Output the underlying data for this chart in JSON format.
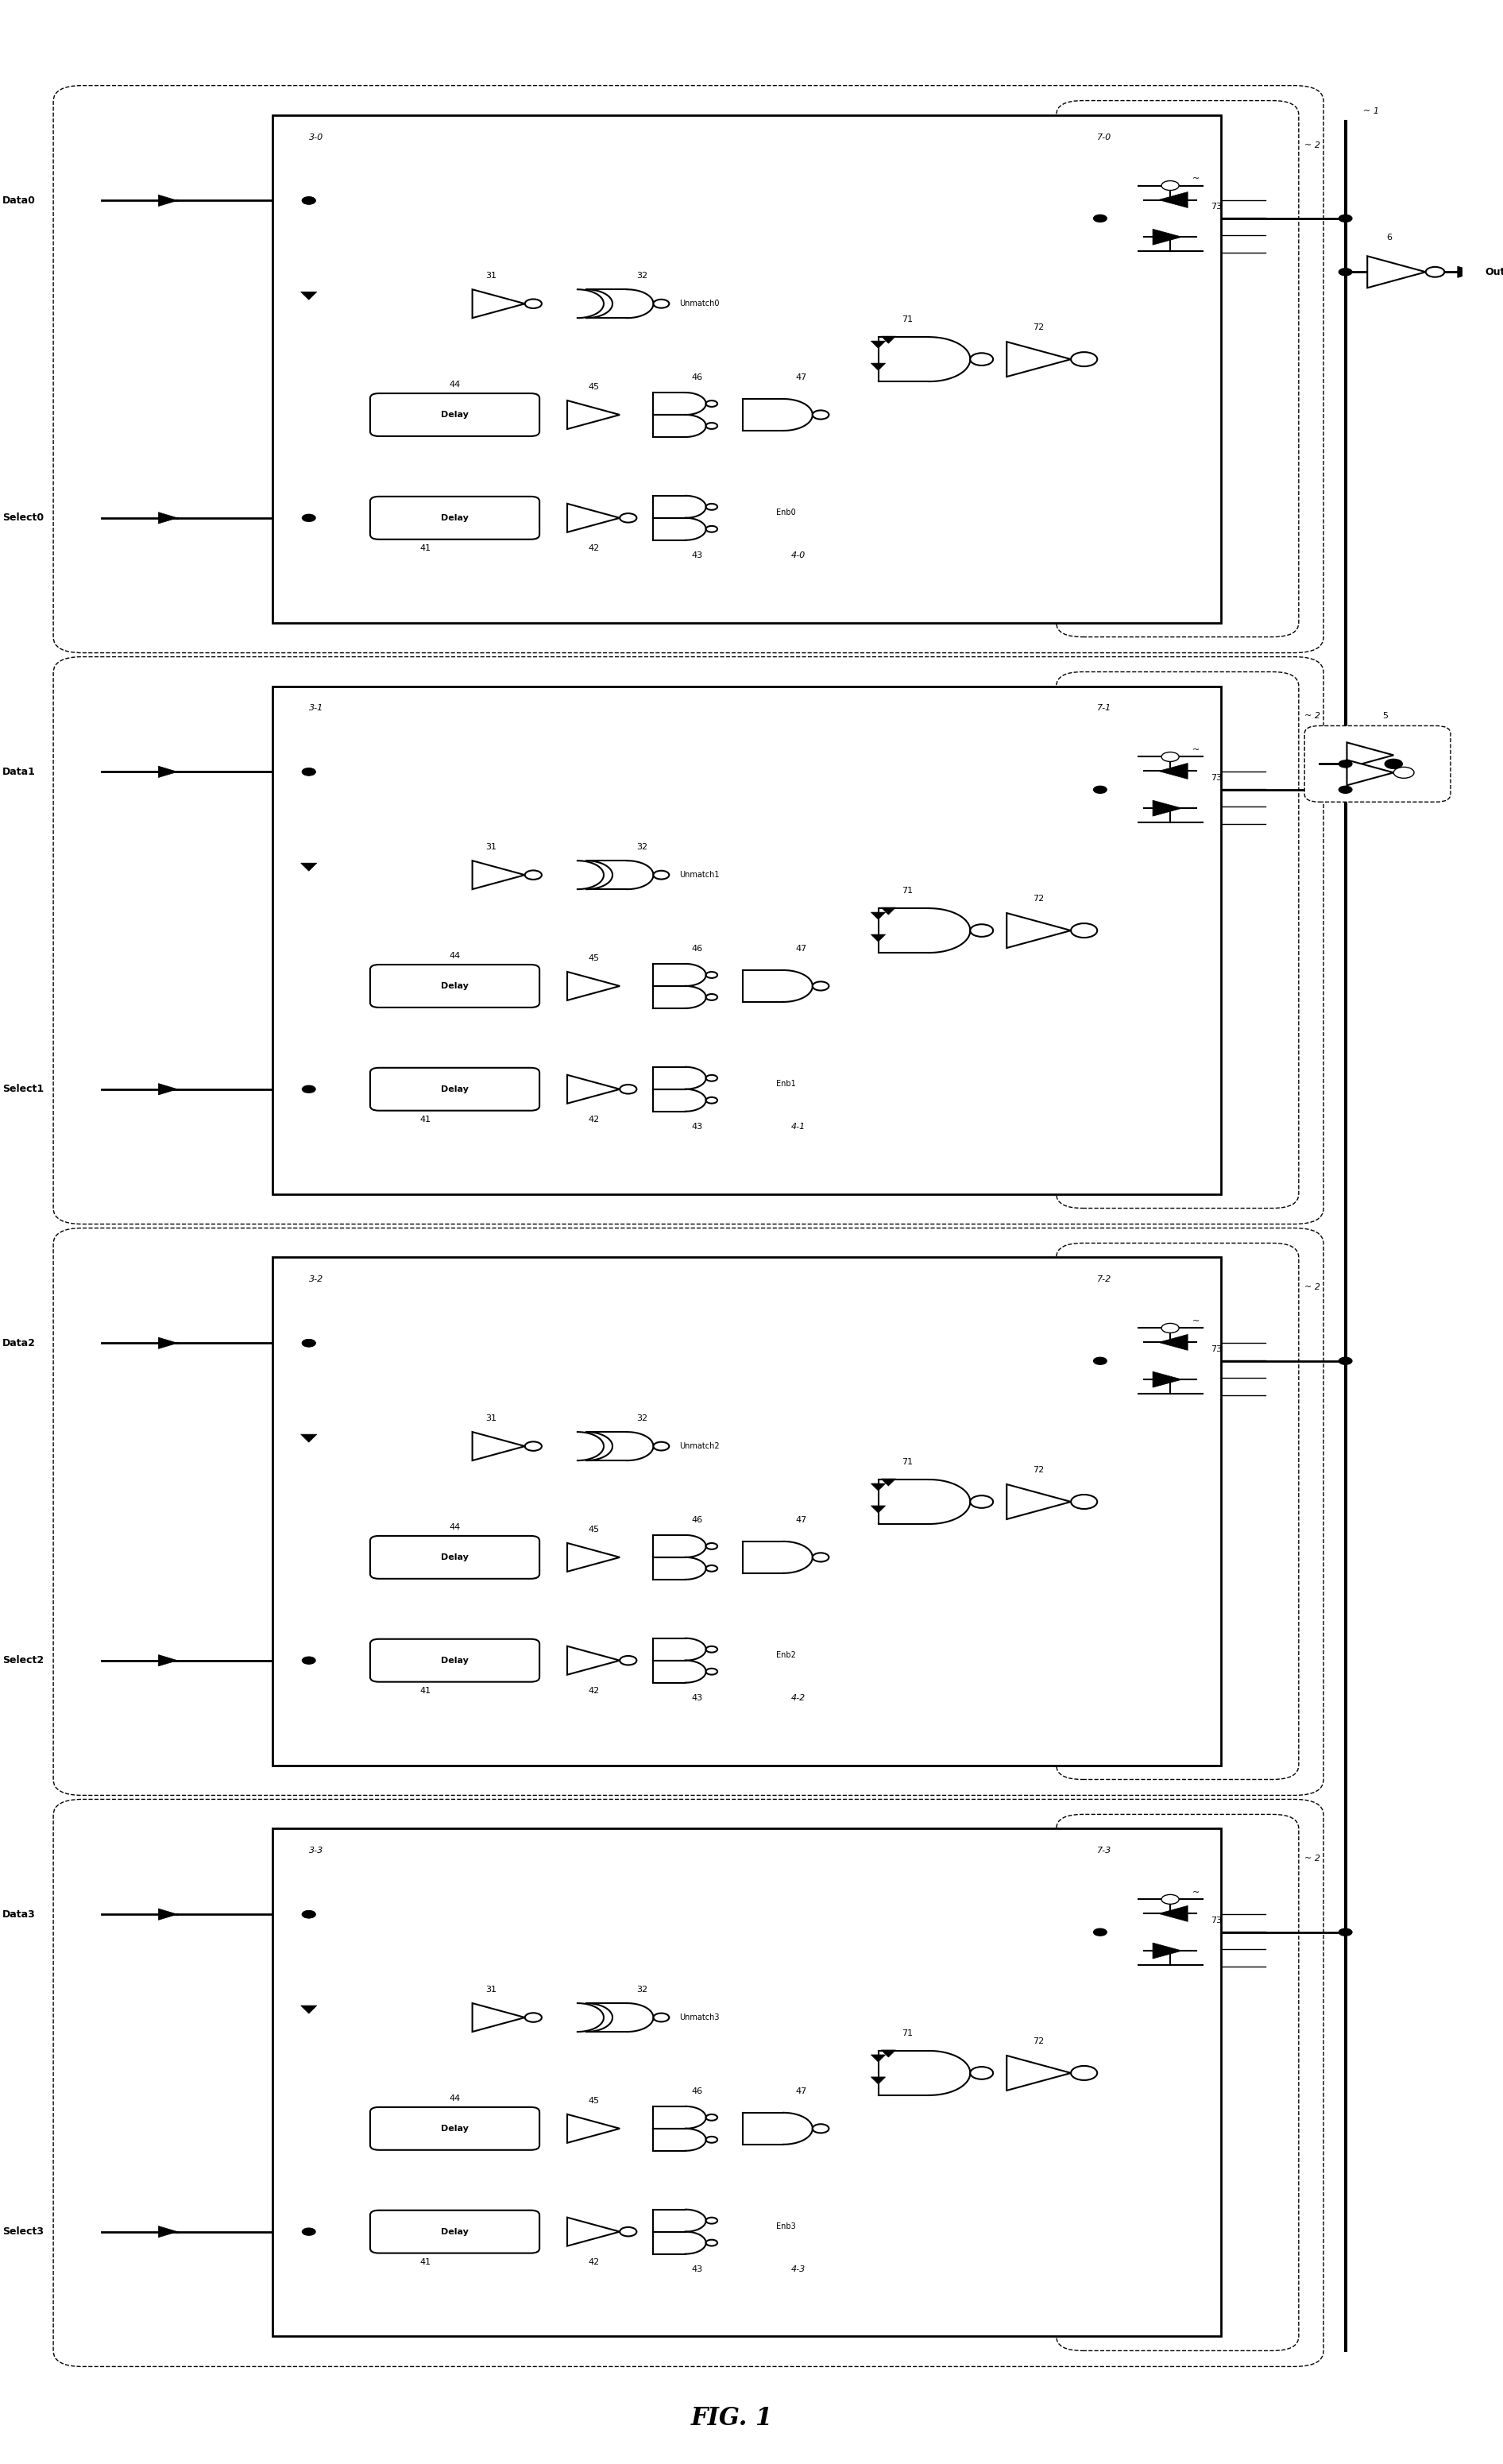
{
  "title": "FIG. 1",
  "background_color": "#ffffff",
  "sections": [
    {
      "index": 0,
      "label_data": "Data0",
      "label_select": "Select0",
      "unmatch": "Unmatch0",
      "enb": "Enb0",
      "box3": "3-0",
      "box7": "7-0",
      "box4": "4-0"
    },
    {
      "index": 1,
      "label_data": "Data1",
      "label_select": "Select1",
      "unmatch": "Unmatch1",
      "enb": "Enb1",
      "box3": "3-1",
      "box7": "7-1",
      "box4": "4-1"
    },
    {
      "index": 2,
      "label_data": "Data2",
      "label_select": "Select2",
      "unmatch": "Unmatch2",
      "enb": "Enb2",
      "box3": "3-2",
      "box7": "7-2",
      "box4": "4-2"
    },
    {
      "index": 3,
      "label_data": "Data3",
      "label_select": "Select3",
      "unmatch": "Unmatch3",
      "enb": "Enb3",
      "box3": "3-3",
      "box7": "7-3",
      "box4": "4-3"
    }
  ],
  "fig_width": 18.92,
  "fig_height": 31.01
}
